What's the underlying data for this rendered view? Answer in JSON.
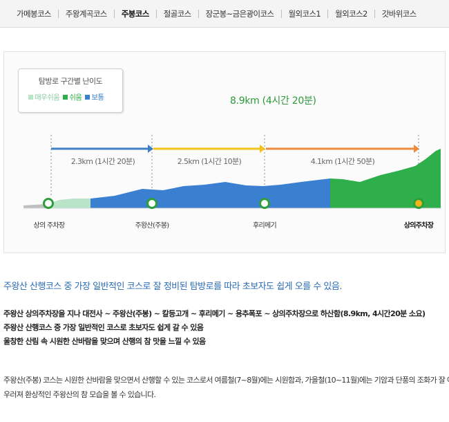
{
  "tabs": [
    {
      "label": "가메봉코스",
      "active": false
    },
    {
      "label": "주왕계곡코스",
      "active": false
    },
    {
      "label": "주봉코스",
      "active": true
    },
    {
      "label": "절골코스",
      "active": false
    },
    {
      "label": "장군봉~금은광이코스",
      "active": false
    },
    {
      "label": "월외코스1",
      "active": false
    },
    {
      "label": "월외코스2",
      "active": false
    },
    {
      "label": "갓바위코스",
      "active": false
    }
  ],
  "legend": {
    "title": "탐방로 구간별 난이도",
    "items": [
      {
        "label": "매우쉬움",
        "color": "#b9e4c7"
      },
      {
        "label": "쉬움",
        "color": "#2faf4b"
      },
      {
        "label": "보통",
        "color": "#3a7fd0"
      }
    ]
  },
  "route": {
    "total": "8.9km (4시간 20분)",
    "segments": [
      {
        "label": "2.3km (1시간 20분)",
        "color": "#3f7fc4"
      },
      {
        "label": "2.5km (1시간 10분)",
        "color": "#f3c21b"
      },
      {
        "label": "4.1km (1시간 50분)",
        "color": "#ee8a3c"
      }
    ],
    "stops": [
      {
        "label": "상의 주차장",
        "bold": false
      },
      {
        "label": "주왕산(주봉)",
        "bold": false
      },
      {
        "label": "후리메기",
        "bold": false
      },
      {
        "label": "상의주차장",
        "bold": true
      }
    ]
  },
  "headline": "주왕산 산행코스 중 가장 일반적인 코스로 잘 정비된 탐방로를 따라 초보자도 쉽게 오를 수 있음.",
  "details": [
    "주왕산 상의주차장을 지나 대전사 ~ 주왕산(주봉) ~ 칼등고개 ~ 후리메기 ~ 용추폭포 ~ 상의주차장으로 하산함(8.9km, 4시간20분 소요)",
    "주왕산 산행코스 중 가장 일반적인 코스로 초보자도 쉽게 갈 수 있음",
    "울창한 산림 속 시원한 산바람을 맞으며 산행의 참 맛을 느낄 수 있음"
  ],
  "note": [
    "주왕산(주봉) 코스는 시원한 산바람을 맞으면서 산행할 수 있는 코스로서 여름철(7~8월)에는 시원함과, 가을철(10~11월)에는 기암과 단풍의 조화가 잘 어",
    "우러져 환상적인 주왕산의 참 모습을 볼 수 있습니다."
  ]
}
